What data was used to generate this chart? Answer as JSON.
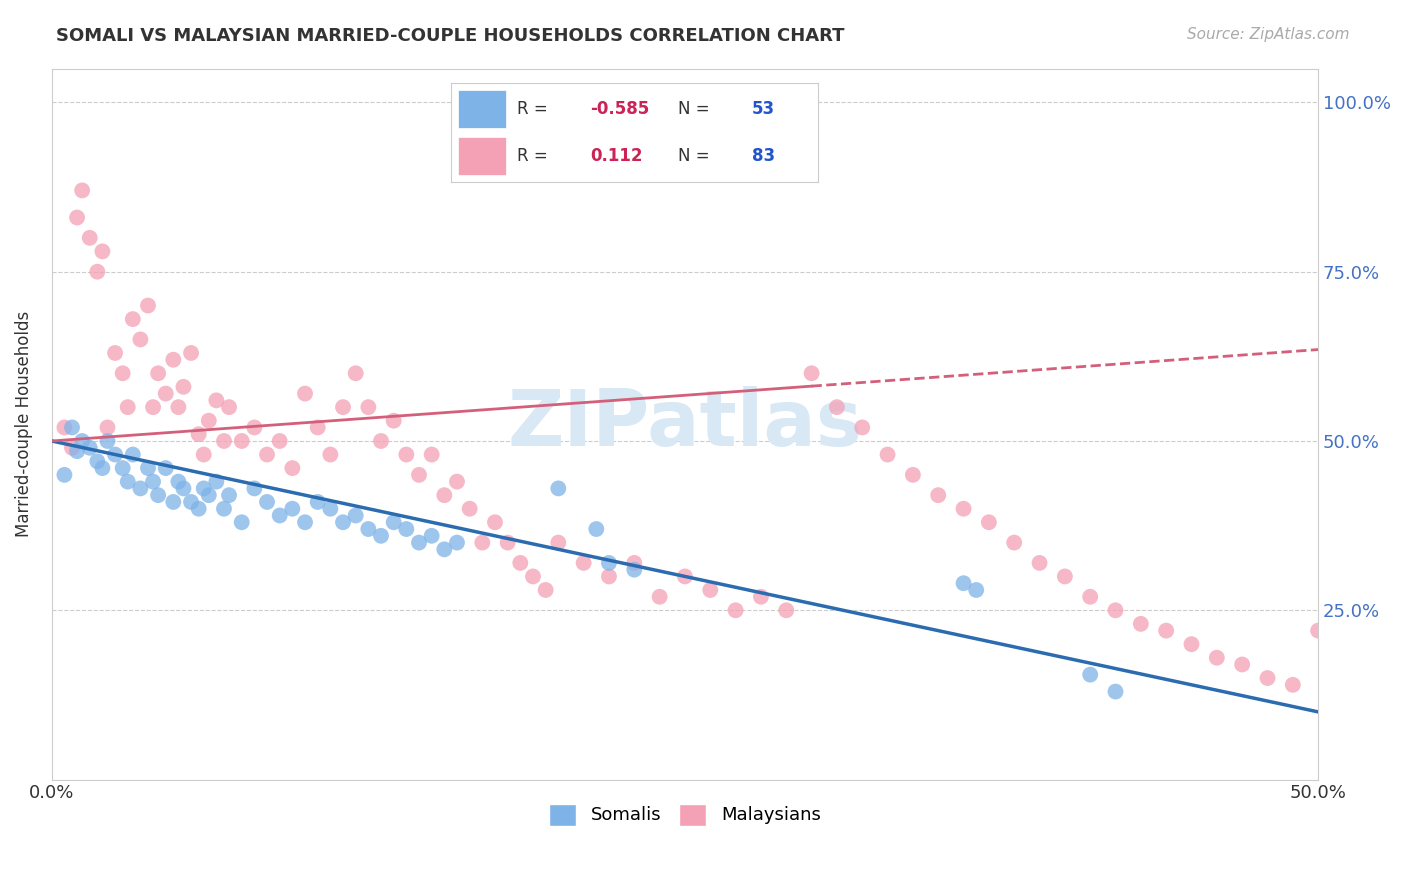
{
  "title": "SOMALI VS MALAYSIAN MARRIED-COUPLE HOUSEHOLDS CORRELATION CHART",
  "source": "Source: ZipAtlas.com",
  "ylabel": "Married-couple Households",
  "xlim": [
    0.0,
    0.5
  ],
  "ylim": [
    0.0,
    1.05
  ],
  "somali_color": "#7EB3E8",
  "malaysian_color": "#F4A0B5",
  "somali_line_color": "#2B6CB0",
  "malaysian_line_color": "#D45F7A",
  "somali_R": "-0.585",
  "somali_N": "53",
  "malaysian_R": "0.112",
  "malaysian_N": "83",
  "legend_R_color": "#CC2255",
  "legend_N_color": "#2255CC",
  "background_color": "#ffffff",
  "grid_color": "#cccccc",
  "watermark_color": "#d8e8f5",
  "somali_line": [
    [
      0.0,
      0.5
    ],
    [
      0.5,
      0.1
    ]
  ],
  "malaysian_line": [
    [
      0.0,
      0.5
    ],
    [
      0.5,
      0.635
    ]
  ],
  "somali_scatter": [
    [
      0.008,
      0.52
    ],
    [
      0.01,
      0.485
    ],
    [
      0.012,
      0.5
    ],
    [
      0.015,
      0.49
    ],
    [
      0.018,
      0.47
    ],
    [
      0.02,
      0.46
    ],
    [
      0.022,
      0.5
    ],
    [
      0.025,
      0.48
    ],
    [
      0.028,
      0.46
    ],
    [
      0.03,
      0.44
    ],
    [
      0.032,
      0.48
    ],
    [
      0.035,
      0.43
    ],
    [
      0.038,
      0.46
    ],
    [
      0.04,
      0.44
    ],
    [
      0.042,
      0.42
    ],
    [
      0.045,
      0.46
    ],
    [
      0.048,
      0.41
    ],
    [
      0.05,
      0.44
    ],
    [
      0.052,
      0.43
    ],
    [
      0.055,
      0.41
    ],
    [
      0.058,
      0.4
    ],
    [
      0.06,
      0.43
    ],
    [
      0.062,
      0.42
    ],
    [
      0.065,
      0.44
    ],
    [
      0.068,
      0.4
    ],
    [
      0.07,
      0.42
    ],
    [
      0.075,
      0.38
    ],
    [
      0.08,
      0.43
    ],
    [
      0.085,
      0.41
    ],
    [
      0.09,
      0.39
    ],
    [
      0.095,
      0.4
    ],
    [
      0.1,
      0.38
    ],
    [
      0.105,
      0.41
    ],
    [
      0.11,
      0.4
    ],
    [
      0.115,
      0.38
    ],
    [
      0.12,
      0.39
    ],
    [
      0.125,
      0.37
    ],
    [
      0.13,
      0.36
    ],
    [
      0.135,
      0.38
    ],
    [
      0.14,
      0.37
    ],
    [
      0.145,
      0.35
    ],
    [
      0.15,
      0.36
    ],
    [
      0.155,
      0.34
    ],
    [
      0.16,
      0.35
    ],
    [
      0.2,
      0.43
    ],
    [
      0.215,
      0.37
    ],
    [
      0.22,
      0.32
    ],
    [
      0.23,
      0.31
    ],
    [
      0.36,
      0.29
    ],
    [
      0.365,
      0.28
    ],
    [
      0.41,
      0.155
    ],
    [
      0.42,
      0.13
    ],
    [
      0.005,
      0.45
    ]
  ],
  "malaysian_scatter": [
    [
      0.005,
      0.52
    ],
    [
      0.008,
      0.49
    ],
    [
      0.01,
      0.83
    ],
    [
      0.012,
      0.87
    ],
    [
      0.015,
      0.8
    ],
    [
      0.018,
      0.75
    ],
    [
      0.02,
      0.78
    ],
    [
      0.022,
      0.52
    ],
    [
      0.025,
      0.63
    ],
    [
      0.028,
      0.6
    ],
    [
      0.03,
      0.55
    ],
    [
      0.032,
      0.68
    ],
    [
      0.035,
      0.65
    ],
    [
      0.038,
      0.7
    ],
    [
      0.04,
      0.55
    ],
    [
      0.042,
      0.6
    ],
    [
      0.045,
      0.57
    ],
    [
      0.048,
      0.62
    ],
    [
      0.05,
      0.55
    ],
    [
      0.052,
      0.58
    ],
    [
      0.055,
      0.63
    ],
    [
      0.058,
      0.51
    ],
    [
      0.06,
      0.48
    ],
    [
      0.062,
      0.53
    ],
    [
      0.065,
      0.56
    ],
    [
      0.068,
      0.5
    ],
    [
      0.07,
      0.55
    ],
    [
      0.075,
      0.5
    ],
    [
      0.08,
      0.52
    ],
    [
      0.085,
      0.48
    ],
    [
      0.09,
      0.5
    ],
    [
      0.095,
      0.46
    ],
    [
      0.1,
      0.57
    ],
    [
      0.105,
      0.52
    ],
    [
      0.11,
      0.48
    ],
    [
      0.115,
      0.55
    ],
    [
      0.12,
      0.6
    ],
    [
      0.125,
      0.55
    ],
    [
      0.13,
      0.5
    ],
    [
      0.135,
      0.53
    ],
    [
      0.14,
      0.48
    ],
    [
      0.145,
      0.45
    ],
    [
      0.15,
      0.48
    ],
    [
      0.155,
      0.42
    ],
    [
      0.16,
      0.44
    ],
    [
      0.165,
      0.4
    ],
    [
      0.17,
      0.35
    ],
    [
      0.175,
      0.38
    ],
    [
      0.18,
      0.35
    ],
    [
      0.185,
      0.32
    ],
    [
      0.19,
      0.3
    ],
    [
      0.195,
      0.28
    ],
    [
      0.2,
      0.35
    ],
    [
      0.21,
      0.32
    ],
    [
      0.22,
      0.3
    ],
    [
      0.23,
      0.32
    ],
    [
      0.24,
      0.27
    ],
    [
      0.25,
      0.3
    ],
    [
      0.26,
      0.28
    ],
    [
      0.27,
      0.25
    ],
    [
      0.28,
      0.27
    ],
    [
      0.29,
      0.25
    ],
    [
      0.3,
      0.6
    ],
    [
      0.31,
      0.55
    ],
    [
      0.32,
      0.52
    ],
    [
      0.33,
      0.48
    ],
    [
      0.34,
      0.45
    ],
    [
      0.35,
      0.42
    ],
    [
      0.36,
      0.4
    ],
    [
      0.37,
      0.38
    ],
    [
      0.38,
      0.35
    ],
    [
      0.39,
      0.32
    ],
    [
      0.4,
      0.3
    ],
    [
      0.41,
      0.27
    ],
    [
      0.42,
      0.25
    ],
    [
      0.43,
      0.23
    ],
    [
      0.44,
      0.22
    ],
    [
      0.45,
      0.2
    ],
    [
      0.46,
      0.18
    ],
    [
      0.47,
      0.17
    ],
    [
      0.48,
      0.15
    ],
    [
      0.49,
      0.14
    ],
    [
      0.5,
      0.22
    ]
  ]
}
